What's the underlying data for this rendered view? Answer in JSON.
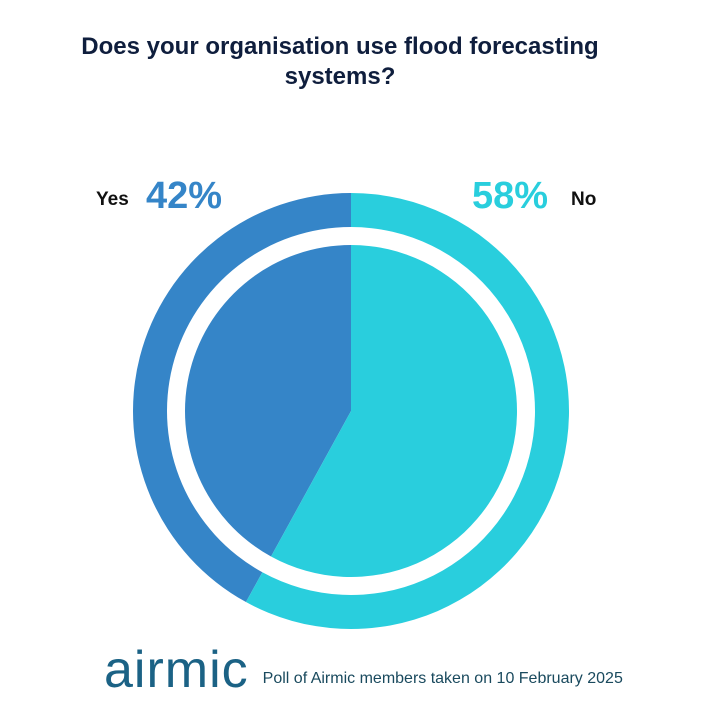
{
  "title": {
    "line1": "Does your organisation use flood forecasting",
    "line2": "systems?"
  },
  "chart_data": {
    "type": "pie",
    "title": "Does your organisation use flood forecasting systems?",
    "categories": [
      "Yes",
      "No"
    ],
    "values": [
      42,
      58
    ],
    "unit": "%",
    "value_labels": [
      "42%",
      "58%"
    ],
    "colors": [
      "#3585c8",
      "#29cedd"
    ],
    "style": "pie with surrounding outer ring"
  },
  "footer": {
    "logo_text": "airmic",
    "caption": "Poll of Airmic members taken on 10 February 2025",
    "logo_color": "#1b6285"
  }
}
